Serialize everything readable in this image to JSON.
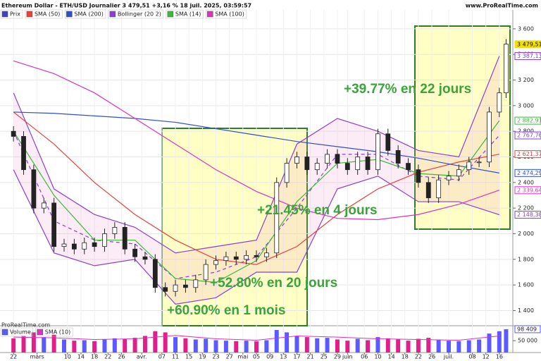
{
  "chart_data": {
    "type": "candlestick",
    "title": "Ethereum Dollar - ETH/USD Journalier 3 479,51 +3,16 % 18 juil. 2025, 03:59:57",
    "source": "www.ProRealTime.com",
    "watermark": "ProRealTime.com",
    "price_name": "Prix",
    "price_color": "#4040c0",
    "x": [
      0,
      3,
      6,
      9,
      12,
      15,
      18,
      21,
      24,
      27,
      30,
      33,
      36,
      39,
      42,
      45,
      48,
      51,
      54,
      57,
      60,
      63,
      66,
      69,
      72,
      75,
      78,
      81,
      84,
      87,
      90,
      93,
      96,
      99,
      102,
      105,
      108,
      111,
      114,
      117,
      120,
      123,
      126,
      129,
      132,
      135,
      138,
      141,
      144,
      146
    ],
    "open": [
      2800,
      2760,
      2500,
      2200,
      2240,
      1900,
      1920,
      1880,
      1930,
      1900,
      2000,
      2050,
      1880,
      1820,
      1800,
      1580,
      1550,
      1600,
      1580,
      1640,
      1760,
      1790,
      1820,
      1800,
      1830,
      1820,
      1850,
      2400,
      2550,
      2600,
      2500,
      2550,
      2620,
      2550,
      2500,
      2600,
      2500,
      2780,
      2650,
      2550,
      2500,
      2400,
      2280,
      2420,
      2450,
      2500,
      2560,
      2560,
      2950,
      3100
    ],
    "high": [
      2840,
      2800,
      2540,
      2280,
      2280,
      1960,
      1960,
      1970,
      1970,
      2040,
      2090,
      2090,
      1920,
      1860,
      1840,
      1620,
      1640,
      1640,
      1680,
      1800,
      1830,
      1860,
      1860,
      1870,
      1870,
      1890,
      2440,
      2590,
      2640,
      2640,
      2590,
      2660,
      2660,
      2590,
      2640,
      2640,
      2820,
      2820,
      2690,
      2590,
      2540,
      2440,
      2460,
      2490,
      2540,
      2600,
      2600,
      2990,
      3140,
      3520
    ],
    "low": [
      2720,
      2460,
      2160,
      2160,
      1860,
      1860,
      1840,
      1840,
      1860,
      1860,
      1960,
      1840,
      1780,
      1760,
      1540,
      1510,
      1510,
      1540,
      1540,
      1600,
      1720,
      1750,
      1760,
      1760,
      1780,
      1780,
      1810,
      2360,
      2510,
      2460,
      2460,
      2510,
      2510,
      2460,
      2460,
      2460,
      2460,
      2610,
      2510,
      2460,
      2360,
      2240,
      2240,
      2380,
      2410,
      2460,
      2520,
      2520,
      2910,
      3060
    ],
    "close": [
      2760,
      2500,
      2200,
      2240,
      1900,
      1920,
      1880,
      1930,
      1900,
      2000,
      2050,
      1880,
      1820,
      1800,
      1580,
      1550,
      1600,
      1580,
      1640,
      1760,
      1790,
      1820,
      1800,
      1830,
      1820,
      1850,
      2400,
      2550,
      2600,
      2500,
      2550,
      2620,
      2550,
      2500,
      2600,
      2500,
      2780,
      2650,
      2550,
      2500,
      2400,
      2280,
      2420,
      2450,
      2500,
      2560,
      2560,
      2950,
      3100,
      3480
    ],
    "indicator_x": [
      0,
      12,
      24,
      36,
      48,
      60,
      72,
      84,
      96,
      108,
      120,
      132,
      144
    ],
    "indicators": [
      {
        "name": "SMA (50)",
        "color": "#e8403a",
        "values": [
          2950,
          2700,
          2400,
          2150,
          1950,
          1800,
          1760,
          1900,
          2150,
          2350,
          2480,
          2560,
          2621
        ]
      },
      {
        "name": "SMA (200)",
        "color": "#2e4fd0",
        "values": [
          2950,
          2940,
          2920,
          2900,
          2870,
          2820,
          2770,
          2720,
          2680,
          2640,
          2590,
          2530,
          2474
        ]
      },
      {
        "name": "SMA (14)",
        "color": "#3cb83c",
        "values": [
          2800,
          2300,
          1950,
          1950,
          1650,
          1620,
          1790,
          2250,
          2550,
          2580,
          2470,
          2450,
          2883
        ]
      },
      {
        "name": "SMA (100)",
        "color": "#e030c0",
        "values": [
          3350,
          3250,
          3100,
          2900,
          2700,
          2500,
          2330,
          2200,
          2120,
          2110,
          2150,
          2230,
          2340
        ]
      }
    ],
    "bollinger": {
      "name": "Bollinger (20 2)",
      "color": "#8a3fd0",
      "upper": [
        3100,
        2350,
        2150,
        2050,
        1850,
        1900,
        1950,
        2700,
        2900,
        2800,
        2650,
        2600,
        3387
      ],
      "middle": [
        2800,
        2100,
        1950,
        1920,
        1650,
        1700,
        1820,
        2200,
        2620,
        2620,
        2450,
        2420,
        2768
      ],
      "lower": [
        2500,
        1850,
        1750,
        1800,
        1450,
        1500,
        1700,
        1700,
        2350,
        2450,
        2250,
        2250,
        2148
      ]
    },
    "xlim": [
      -4,
      148
    ],
    "xticks": [
      {
        "value": 0,
        "label": "22"
      },
      {
        "value": 7,
        "label": "mars"
      },
      {
        "value": 16,
        "label": "10"
      },
      {
        "value": 20,
        "label": "14"
      },
      {
        "value": 24,
        "label": "18"
      },
      {
        "value": 28,
        "label": "22"
      },
      {
        "value": 32,
        "label": "26"
      },
      {
        "value": 38,
        "label": "avr."
      },
      {
        "value": 44,
        "label": "07"
      },
      {
        "value": 48,
        "label": "11"
      },
      {
        "value": 52,
        "label": "15"
      },
      {
        "value": 56,
        "label": "19"
      },
      {
        "value": 60,
        "label": "23"
      },
      {
        "value": 64,
        "label": "27"
      },
      {
        "value": 68,
        "label": "mai"
      },
      {
        "value": 72,
        "label": "05"
      },
      {
        "value": 76,
        "label": "09"
      },
      {
        "value": 80,
        "label": "13"
      },
      {
        "value": 84,
        "label": "17"
      },
      {
        "value": 88,
        "label": "21"
      },
      {
        "value": 92,
        "label": "25"
      },
      {
        "value": 96,
        "label": "29"
      },
      {
        "value": 99,
        "label": "juin"
      },
      {
        "value": 104,
        "label": "06"
      },
      {
        "value": 108,
        "label": "10"
      },
      {
        "value": 112,
        "label": "14"
      },
      {
        "value": 116,
        "label": "18"
      },
      {
        "value": 120,
        "label": "22"
      },
      {
        "value": 124,
        "label": "26"
      },
      {
        "value": 129,
        "label": "juil."
      },
      {
        "value": 136,
        "label": "08"
      },
      {
        "value": 140,
        "label": "12"
      },
      {
        "value": 144,
        "label": "16"
      }
    ],
    "ylim": [
      1320,
      3825
    ],
    "yticks": [
      {
        "value": 1400,
        "label": "1 400"
      },
      {
        "value": 1600,
        "label": "1 600"
      },
      {
        "value": 1800,
        "label": "1 800"
      },
      {
        "value": 2000,
        "label": "2 000"
      },
      {
        "value": 2200,
        "label": "2 200"
      },
      {
        "value": 2400,
        "label": "2 400"
      },
      {
        "value": 2600,
        "label": "2 600"
      },
      {
        "value": 2800,
        "label": "2 800"
      },
      {
        "value": 3000,
        "label": "3 000"
      },
      {
        "value": 3200,
        "label": "3 200"
      },
      {
        "value": 3400,
        "label": "3 400"
      },
      {
        "value": 3600,
        "label": "3 600"
      }
    ],
    "last_values": [
      {
        "value": 3479.51,
        "label": "3 479,51",
        "color": "#f5e000"
      },
      {
        "value": 3387.13,
        "label": "3 387,13",
        "color": "#8a3fd0"
      },
      {
        "value": 2882.91,
        "label": "2 882,91",
        "color": "#3cb83c"
      },
      {
        "value": 2767.76,
        "label": "2 767,76",
        "color": "#8a3fd0"
      },
      {
        "value": 2621.37,
        "label": "2 621,37",
        "color": "#e8403a"
      },
      {
        "value": 2474.29,
        "label": "2 474,29",
        "color": "#2e4fd0"
      },
      {
        "value": 2339.64,
        "label": "2 339,64",
        "color": "#e030c0"
      },
      {
        "value": 2148.38,
        "label": "2 148,38",
        "color": "#8a3fd0"
      }
    ],
    "annotations": [
      "+39.77% en 22 jours",
      "+21.45% en 4 jours",
      "+52.80% en 20 jours",
      "+60.90% en 1 mois"
    ],
    "volume": {
      "name": "Volume",
      "up_color": "#5a5aff",
      "down_color": "#e0208a",
      "values": [
        60000,
        70000,
        85000,
        65000,
        75000,
        55000,
        50000,
        52000,
        48000,
        55000,
        60000,
        58000,
        62000,
        70000,
        90000,
        85000,
        65000,
        60000,
        55000,
        58000,
        52000,
        50000,
        48000,
        50000,
        47000,
        52000,
        95000,
        85000,
        70000,
        65000,
        60000,
        62000,
        55000,
        50000,
        58000,
        52000,
        65000,
        60000,
        55000,
        50000,
        58000,
        62000,
        55000,
        50000,
        48000,
        52000,
        55000,
        80000,
        90000,
        98409
      ],
      "sma_name": "SMA (10)",
      "sma_color": "#e030c0",
      "sma_values": [
        65000,
        62000,
        55000,
        58000,
        72000,
        58000,
        52000,
        70000,
        65000,
        58000,
        55000,
        52000,
        70000
      ],
      "ylim": [
        0,
        110000
      ],
      "yticks": [
        {
          "value": 50000,
          "label": "50 000"
        }
      ],
      "last_value": {
        "value": 98409,
        "label": "98 409"
      }
    }
  }
}
